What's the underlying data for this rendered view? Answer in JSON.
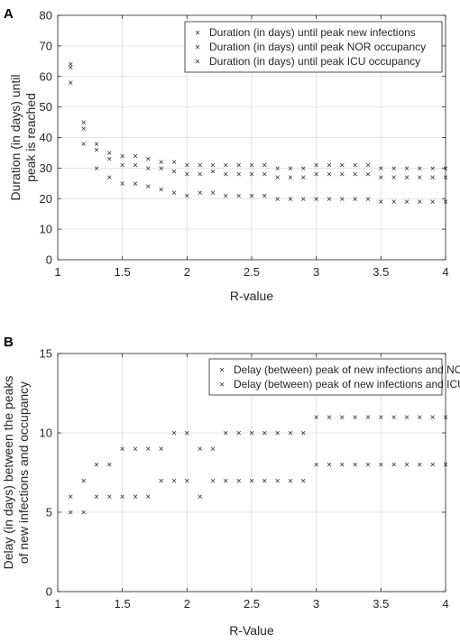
{
  "chart_data": [
    {
      "panel_label": "A",
      "type": "scatter",
      "xlabel": "R-value",
      "ylabel": [
        "Duration (in days) until",
        "peak is reached"
      ],
      "xlim": [
        1,
        4
      ],
      "ylim": [
        0,
        80
      ],
      "xticks": [
        1,
        1.5,
        2,
        2.5,
        3,
        3.5,
        4
      ],
      "yticks": [
        0,
        10,
        20,
        30,
        40,
        50,
        60,
        70,
        80
      ],
      "grid": true,
      "legend_position": "top-right",
      "marker": "×",
      "x": [
        1.1,
        1.2,
        1.3,
        1.4,
        1.5,
        1.6,
        1.7,
        1.8,
        1.9,
        2.0,
        2.1,
        2.2,
        2.3,
        2.4,
        2.5,
        2.6,
        2.7,
        2.8,
        2.9,
        3.0,
        3.1,
        3.2,
        3.3,
        3.4,
        3.5,
        3.6,
        3.7,
        3.8,
        3.9,
        4.0
      ],
      "series": [
        {
          "name": "Duration (in days) until peak new infections",
          "color": "#000000",
          "values": [
            58,
            38,
            30,
            27,
            25,
            25,
            24,
            23,
            22,
            21,
            22,
            22,
            21,
            21,
            21,
            21,
            20,
            20,
            20,
            20,
            20,
            20,
            20,
            20,
            19,
            19,
            19,
            19,
            19,
            19
          ]
        },
        {
          "name": "Duration (in days) until peak NOR occupancy",
          "color": "#0000FF",
          "values": [
            63,
            43,
            36,
            33,
            31,
            31,
            30,
            30,
            29,
            28,
            28,
            29,
            28,
            28,
            28,
            28,
            27,
            27,
            27,
            28,
            28,
            28,
            28,
            28,
            27,
            27,
            27,
            27,
            27,
            27
          ]
        },
        {
          "name": "Duration (in days) until peak ICU occupancy",
          "color": "#C00000",
          "values": [
            64,
            45,
            38,
            35,
            34,
            34,
            33,
            32,
            32,
            31,
            31,
            31,
            31,
            31,
            31,
            31,
            30,
            30,
            30,
            31,
            31,
            31,
            31,
            31,
            30,
            30,
            30,
            30,
            30,
            30
          ]
        }
      ]
    },
    {
      "panel_label": "B",
      "type": "scatter",
      "xlabel": "R-Value",
      "ylabel": [
        "Delay (in days) between the peaks",
        "of new infections and occupancy"
      ],
      "xlim": [
        1,
        4
      ],
      "ylim": [
        0,
        15
      ],
      "xticks": [
        1,
        1.5,
        2,
        2.5,
        3,
        3.5,
        4
      ],
      "yticks": [
        0,
        5,
        10,
        15
      ],
      "grid": true,
      "legend_position": "top-right",
      "marker": "×",
      "x": [
        1.1,
        1.2,
        1.3,
        1.4,
        1.5,
        1.6,
        1.7,
        1.8,
        1.9,
        2.0,
        2.1,
        2.2,
        2.3,
        2.4,
        2.5,
        2.6,
        2.7,
        2.8,
        2.9,
        3.0,
        3.1,
        3.2,
        3.3,
        3.4,
        3.5,
        3.6,
        3.7,
        3.8,
        3.9,
        4.0
      ],
      "series": [
        {
          "name": "Delay (between) peak of new infections and NOR peak",
          "color": "#0000FF",
          "values": [
            5,
            5,
            6,
            6,
            6,
            6,
            6,
            7,
            7,
            7,
            6,
            7,
            7,
            7,
            7,
            7,
            7,
            7,
            7,
            8,
            8,
            8,
            8,
            8,
            8,
            8,
            8,
            8,
            8,
            8
          ]
        },
        {
          "name": "Delay (between) peak of new infections and ICU peak",
          "color": "#C00000",
          "values": [
            6,
            7,
            8,
            8,
            9,
            9,
            9,
            9,
            10,
            10,
            9,
            9,
            10,
            10,
            10,
            10,
            10,
            10,
            10,
            11,
            11,
            11,
            11,
            11,
            11,
            11,
            11,
            11,
            11,
            11
          ]
        }
      ]
    }
  ]
}
